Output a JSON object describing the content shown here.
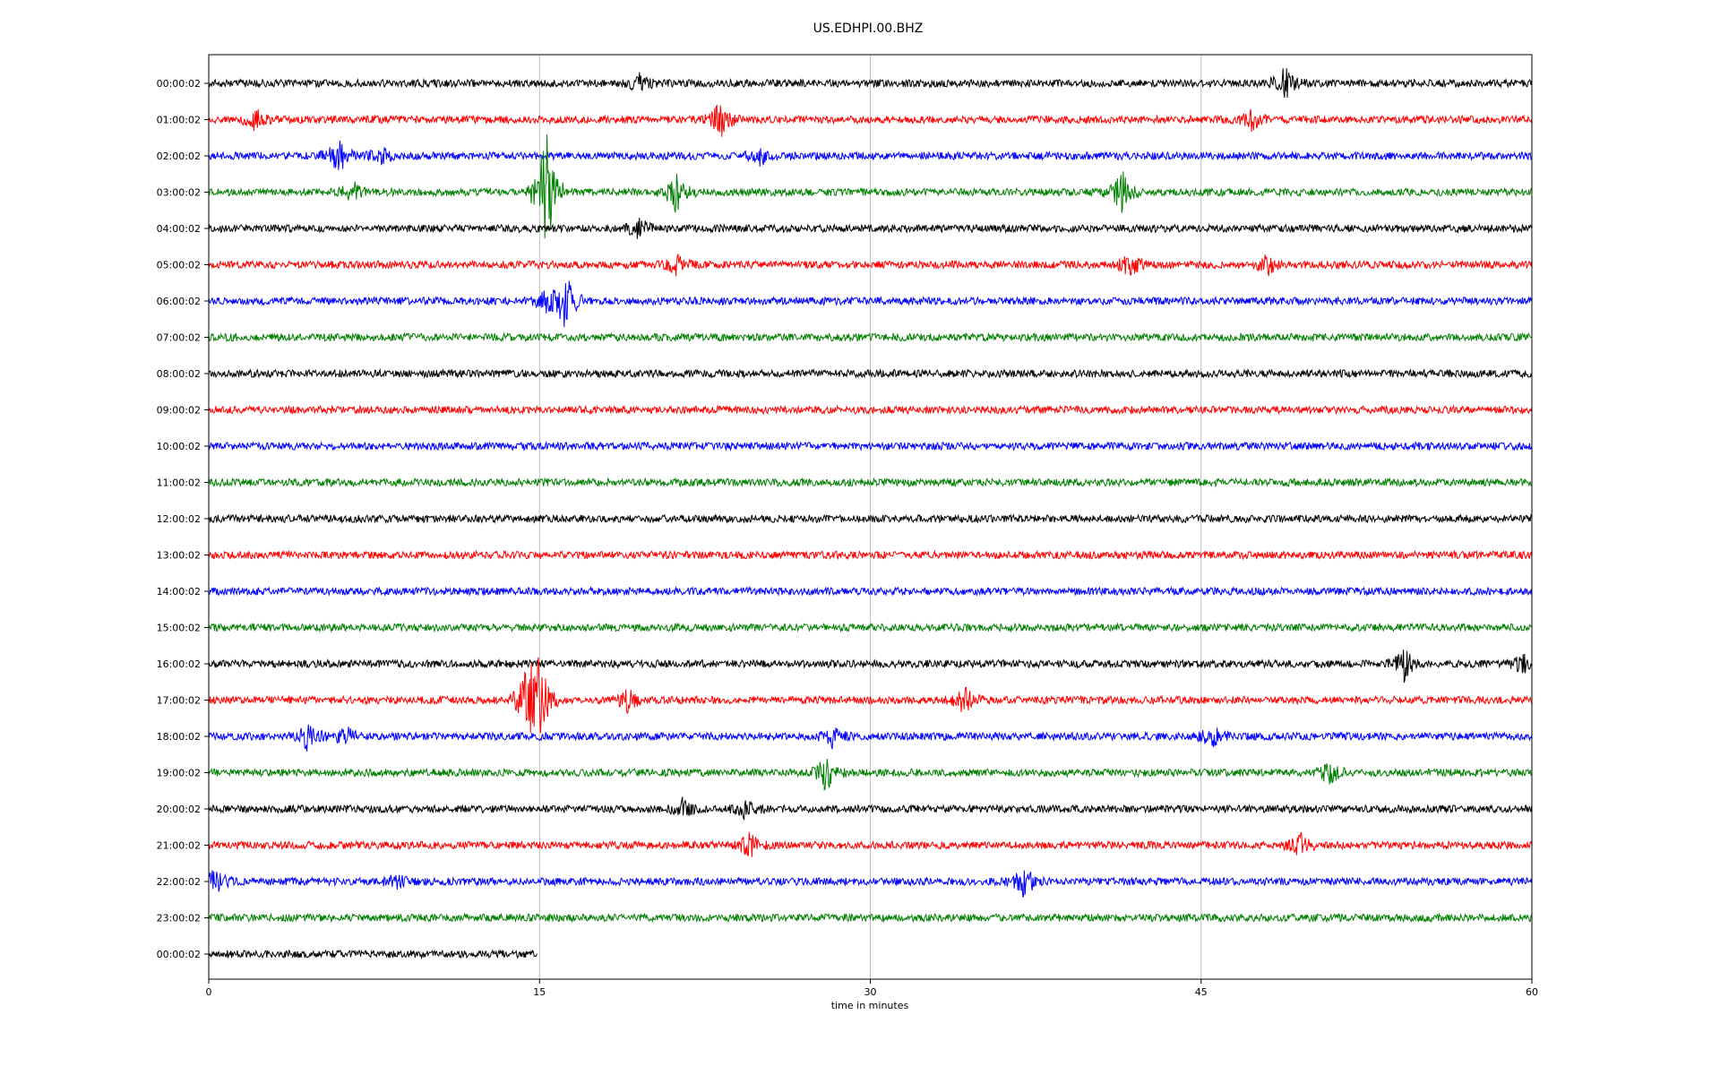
{
  "chart_data": {
    "type": "line",
    "title": "US.EDHPI.00.BHZ",
    "xlabel": "time in minutes",
    "ylabel": "",
    "xlim": [
      0,
      60
    ],
    "x_ticks": [
      "0",
      "15",
      "30",
      "45",
      "60"
    ],
    "x_tick_values": [
      0,
      15,
      30,
      45,
      60
    ],
    "grid": "vertical gridlines at each x tick",
    "legend": "none",
    "color_cycle": [
      "#000000",
      "#ff0000",
      "#0000ff",
      "#008000"
    ],
    "rows": [
      {
        "label": "00:00:02",
        "color": "#000000",
        "end_minute": 60,
        "events": [
          {
            "t": 19.5,
            "amp": 0.25
          },
          {
            "t": 48.8,
            "amp": 0.45
          }
        ]
      },
      {
        "label": "01:00:02",
        "color": "#ff0000",
        "end_minute": 60,
        "events": [
          {
            "t": 2.1,
            "amp": 0.3
          },
          {
            "t": 23.2,
            "amp": 0.5
          },
          {
            "t": 47.3,
            "amp": 0.25
          }
        ]
      },
      {
        "label": "02:00:02",
        "color": "#0000ff",
        "end_minute": 60,
        "events": [
          {
            "t": 5.9,
            "amp": 0.55
          },
          {
            "t": 7.8,
            "amp": 0.3
          },
          {
            "t": 25.0,
            "amp": 0.25
          }
        ]
      },
      {
        "label": "03:00:02",
        "color": "#008000",
        "end_minute": 60,
        "events": [
          {
            "t": 6.5,
            "amp": 0.3
          },
          {
            "t": 15.3,
            "amp": 1.9
          },
          {
            "t": 21.2,
            "amp": 0.55
          },
          {
            "t": 41.4,
            "amp": 0.6
          }
        ]
      },
      {
        "label": "04:00:02",
        "color": "#000000",
        "end_minute": 60,
        "events": [
          {
            "t": 19.5,
            "amp": 0.3
          }
        ]
      },
      {
        "label": "05:00:02",
        "color": "#ff0000",
        "end_minute": 60,
        "events": [
          {
            "t": 21.2,
            "amp": 0.25
          },
          {
            "t": 41.8,
            "amp": 0.35
          },
          {
            "t": 48.0,
            "amp": 0.3
          }
        ]
      },
      {
        "label": "06:00:02",
        "color": "#0000ff",
        "end_minute": 60,
        "events": [
          {
            "t": 15.2,
            "amp": 0.3
          },
          {
            "t": 16.2,
            "amp": 0.9
          }
        ]
      },
      {
        "label": "07:00:02",
        "color": "#008000",
        "end_minute": 60,
        "events": []
      },
      {
        "label": "08:00:02",
        "color": "#000000",
        "end_minute": 60,
        "events": []
      },
      {
        "label": "09:00:02",
        "color": "#ff0000",
        "end_minute": 60,
        "events": []
      },
      {
        "label": "10:00:02",
        "color": "#0000ff",
        "end_minute": 60,
        "events": []
      },
      {
        "label": "11:00:02",
        "color": "#008000",
        "end_minute": 60,
        "events": []
      },
      {
        "label": "12:00:02",
        "color": "#000000",
        "end_minute": 60,
        "events": []
      },
      {
        "label": "13:00:02",
        "color": "#ff0000",
        "end_minute": 60,
        "events": []
      },
      {
        "label": "14:00:02",
        "color": "#0000ff",
        "end_minute": 60,
        "events": []
      },
      {
        "label": "15:00:02",
        "color": "#008000",
        "end_minute": 60,
        "events": []
      },
      {
        "label": "16:00:02",
        "color": "#000000",
        "end_minute": 60,
        "events": [
          {
            "t": 54.2,
            "amp": 0.45
          },
          {
            "t": 59.7,
            "amp": 0.35
          }
        ]
      },
      {
        "label": "17:00:02",
        "color": "#ff0000",
        "end_minute": 60,
        "events": [
          {
            "t": 14.5,
            "amp": 1.2
          },
          {
            "t": 15.0,
            "amp": 1.1
          },
          {
            "t": 19.0,
            "amp": 0.3
          },
          {
            "t": 34.3,
            "amp": 0.4
          }
        ]
      },
      {
        "label": "18:00:02",
        "color": "#0000ff",
        "end_minute": 60,
        "events": [
          {
            "t": 4.5,
            "amp": 0.45
          },
          {
            "t": 6.2,
            "amp": 0.3
          },
          {
            "t": 28.3,
            "amp": 0.3
          },
          {
            "t": 45.5,
            "amp": 0.3
          }
        ]
      },
      {
        "label": "19:00:02",
        "color": "#008000",
        "end_minute": 60,
        "events": [
          {
            "t": 28.0,
            "amp": 0.55
          },
          {
            "t": 50.8,
            "amp": 0.35
          }
        ]
      },
      {
        "label": "20:00:02",
        "color": "#000000",
        "end_minute": 60,
        "events": [
          {
            "t": 21.5,
            "amp": 0.3
          },
          {
            "t": 24.3,
            "amp": 0.25
          }
        ]
      },
      {
        "label": "21:00:02",
        "color": "#ff0000",
        "end_minute": 60,
        "events": [
          {
            "t": 24.5,
            "amp": 0.35
          },
          {
            "t": 49.5,
            "amp": 0.3
          }
        ]
      },
      {
        "label": "22:00:02",
        "color": "#0000ff",
        "end_minute": 60,
        "events": [
          {
            "t": 0.3,
            "amp": 0.35
          },
          {
            "t": 8.5,
            "amp": 0.2
          },
          {
            "t": 37.0,
            "amp": 0.45
          }
        ]
      },
      {
        "label": "23:00:02",
        "color": "#008000",
        "end_minute": 60,
        "events": []
      },
      {
        "label": "00:00:02",
        "color": "#000000",
        "end_minute": 14.9,
        "events": []
      }
    ]
  }
}
